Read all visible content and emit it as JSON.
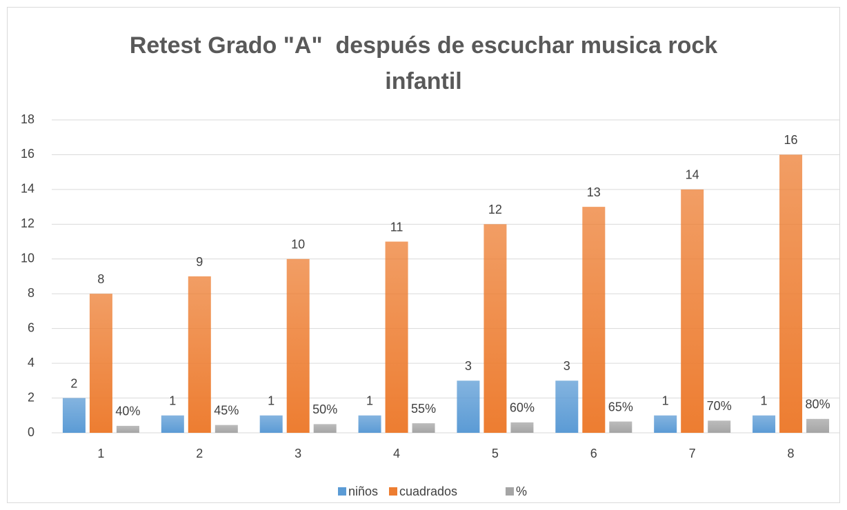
{
  "chart_data": {
    "type": "bar",
    "title": "Retest Grado \"A\"  después de escuchar musica rock infantil",
    "categories": [
      "1",
      "2",
      "3",
      "4",
      "5",
      "6",
      "7",
      "8"
    ],
    "series": [
      {
        "name": "niños",
        "color": "#5b9bd5",
        "values": [
          2,
          1,
          1,
          1,
          3,
          3,
          1,
          1
        ]
      },
      {
        "name": "cuadrados",
        "color": "#ed7d31",
        "values": [
          8,
          9,
          10,
          11,
          12,
          13,
          14,
          16
        ]
      },
      {
        "name": "%",
        "color": "#a5a5a5",
        "values": [
          0.4,
          0.45,
          0.5,
          0.55,
          0.6,
          0.65,
          0.7,
          0.8
        ],
        "value_labels": [
          "40%",
          "45%",
          "50%",
          "55%",
          "60%",
          "65%",
          "70%",
          "80%"
        ]
      }
    ],
    "ylim": [
      0,
      18
    ],
    "yticks": [
      0,
      2,
      4,
      6,
      8,
      10,
      12,
      14,
      16,
      18
    ],
    "grid": true,
    "legend": "bottom"
  }
}
